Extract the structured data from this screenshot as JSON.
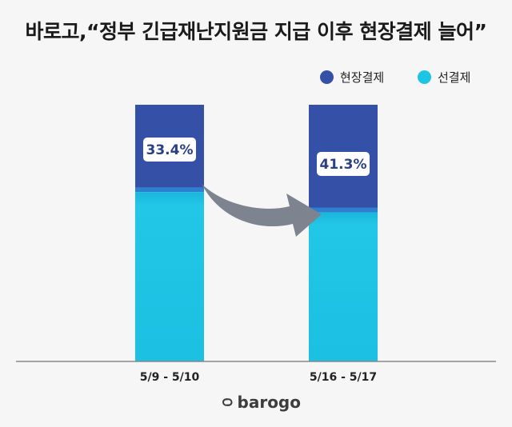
{
  "title": "바로고,“정부 긴급재난지원금 지급 이후 현장결제 늘어”",
  "logo_text": "barogo",
  "colors": {
    "onsite": "#3450a7",
    "prepaid": "#1ec4e4",
    "arrow": "#7d8490",
    "baseline": "#888888"
  },
  "chart_data": {
    "type": "bar",
    "stacked": true,
    "normalized": true,
    "categories": [
      "5/9 - 5/10",
      "5/16 - 5/17"
    ],
    "series": [
      {
        "name": "현장결제",
        "values": [
          33.4,
          41.3
        ],
        "color": "#3450a7"
      },
      {
        "name": "선결제",
        "values": [
          66.6,
          58.7
        ],
        "color": "#1ec4e4"
      }
    ],
    "data_labels": [
      "33.4%",
      "41.3%"
    ],
    "ylim": [
      0,
      100
    ],
    "legend_position": "top-right",
    "grid": false,
    "annotation": "arrow from first bar label to second bar"
  }
}
